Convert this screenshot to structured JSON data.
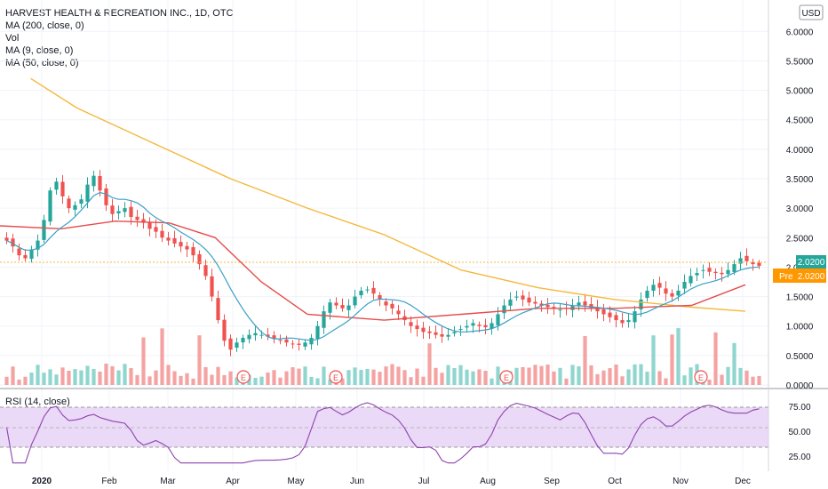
{
  "legend": {
    "title": "HARVEST HEALTH & RECREATION INC., 1D, OTC",
    "lines": [
      "MA (200, close, 0)",
      "Vol",
      "MA (9, close, 0)",
      "MA (50, close, 0)"
    ]
  },
  "currency": "USD",
  "rsi_label": "RSI (14, close)",
  "price_tag": {
    "value": "2.0200",
    "pre_label": "Pre",
    "pre_value": "2.0200"
  },
  "colors": {
    "up": "#26a69a",
    "down": "#ef5350",
    "ma200": "#f5b83d",
    "ma50": "#e74c4c",
    "ma9": "#3aa0c6",
    "rsi_line": "#8e44ad",
    "rsi_band": "#ead9f7",
    "pre_tag": "#ff9800",
    "price_tag": "#26a69a"
  },
  "chart_data": {
    "type": "candlestick",
    "x_ticks": [
      "2020",
      "Feb",
      "Mar",
      "Apr",
      "May",
      "Jun",
      "Jul",
      "Aug",
      "Sep",
      "Oct",
      "Nov",
      "Dec"
    ],
    "y_ticks": [
      "0.0000",
      "0.5000",
      "1.0000",
      "1.5000",
      "2.0000",
      "2.5000",
      "3.0000",
      "3.5000",
      "4.0000",
      "4.5000",
      "5.0000",
      "5.5000",
      "6.0000"
    ],
    "ylim": [
      0,
      6.2
    ],
    "close_series": [
      2.45,
      2.35,
      2.2,
      2.15,
      2.3,
      2.45,
      2.8,
      3.3,
      3.45,
      3.2,
      3.0,
      3.05,
      3.15,
      3.4,
      3.55,
      3.3,
      3.05,
      2.9,
      2.95,
      3.0,
      2.85,
      2.8,
      2.75,
      2.65,
      2.6,
      2.5,
      2.45,
      2.4,
      2.35,
      2.3,
      2.2,
      2.05,
      1.85,
      1.5,
      1.1,
      0.75,
      0.6,
      0.72,
      0.8,
      0.85,
      0.88,
      0.85,
      0.82,
      0.78,
      0.75,
      0.72,
      0.7,
      0.68,
      0.72,
      0.8,
      1.0,
      1.25,
      1.4,
      1.35,
      1.3,
      1.35,
      1.5,
      1.6,
      1.62,
      1.55,
      1.45,
      1.35,
      1.3,
      1.2,
      1.1,
      1.0,
      0.95,
      0.9,
      0.88,
      0.85,
      0.82,
      0.85,
      0.9,
      0.95,
      1.0,
      1.05,
      1.0,
      0.98,
      1.05,
      1.2,
      1.35,
      1.45,
      1.5,
      1.45,
      1.4,
      1.38,
      1.35,
      1.32,
      1.3,
      1.28,
      1.3,
      1.35,
      1.4,
      1.35,
      1.3,
      1.25,
      1.2,
      1.15,
      1.1,
      1.05,
      1.1,
      1.25,
      1.45,
      1.6,
      1.7,
      1.65,
      1.55,
      1.5,
      1.6,
      1.75,
      1.85,
      1.9,
      1.95,
      1.92,
      1.9,
      1.88,
      1.95,
      2.05,
      2.15,
      2.1,
      2.05,
      2.02
    ],
    "ma200": {
      "x": [
        0.04,
        0.1,
        0.2,
        0.3,
        0.4,
        0.5,
        0.6,
        0.7,
        0.8,
        0.9,
        0.97
      ],
      "values": [
        5.2,
        4.7,
        4.1,
        3.5,
        3.0,
        2.55,
        1.95,
        1.65,
        1.45,
        1.32,
        1.25
      ]
    },
    "ma50": {
      "x": [
        0.0,
        0.08,
        0.15,
        0.22,
        0.28,
        0.34,
        0.4,
        0.5,
        0.6,
        0.7,
        0.8,
        0.9,
        0.97
      ],
      "values": [
        2.7,
        2.65,
        2.78,
        2.75,
        2.5,
        1.75,
        1.2,
        1.1,
        1.2,
        1.3,
        1.3,
        1.35,
        1.7
      ]
    },
    "rsi": {
      "ylim": [
        15,
        85
      ],
      "y_ticks": [
        "25.00",
        "50.00",
        "75.00"
      ],
      "upper": 70,
      "lower": 30
    },
    "events": [
      "E",
      "E",
      "E",
      "E"
    ]
  }
}
